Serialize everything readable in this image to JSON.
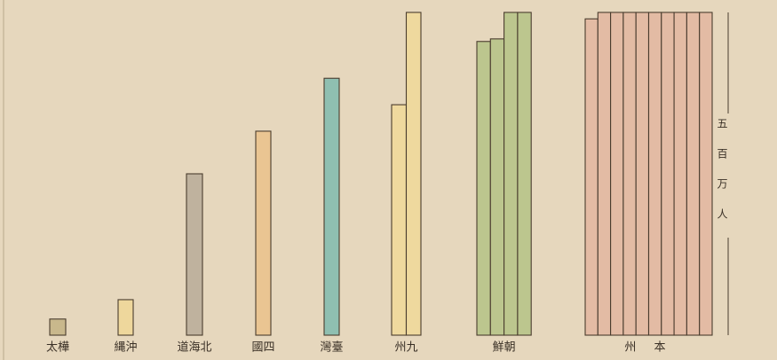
{
  "chart_data": {
    "type": "column-bar",
    "categories": [
      "太樺",
      "縄沖",
      "道海北",
      "國四",
      "灣臺",
      "州九",
      "鮮朝",
      "州 本"
    ],
    "values": [
      [
        25
      ],
      [
        55
      ],
      [
        250
      ],
      [
        316
      ],
      [
        398
      ],
      [
        357,
        500
      ],
      [
        455,
        459,
        500,
        500
      ],
      [
        490,
        500,
        500,
        500,
        500,
        500,
        500,
        500,
        500,
        500
      ]
    ],
    "colors": [
      "#c9b88c",
      "#eed79c",
      "#bfb29e",
      "#eac592",
      "#8fbfb1",
      "#efd99e",
      "#bcc68e",
      "#e3bba4"
    ],
    "ylim": [
      0,
      500
    ],
    "scale_label": "五百万人"
  }
}
